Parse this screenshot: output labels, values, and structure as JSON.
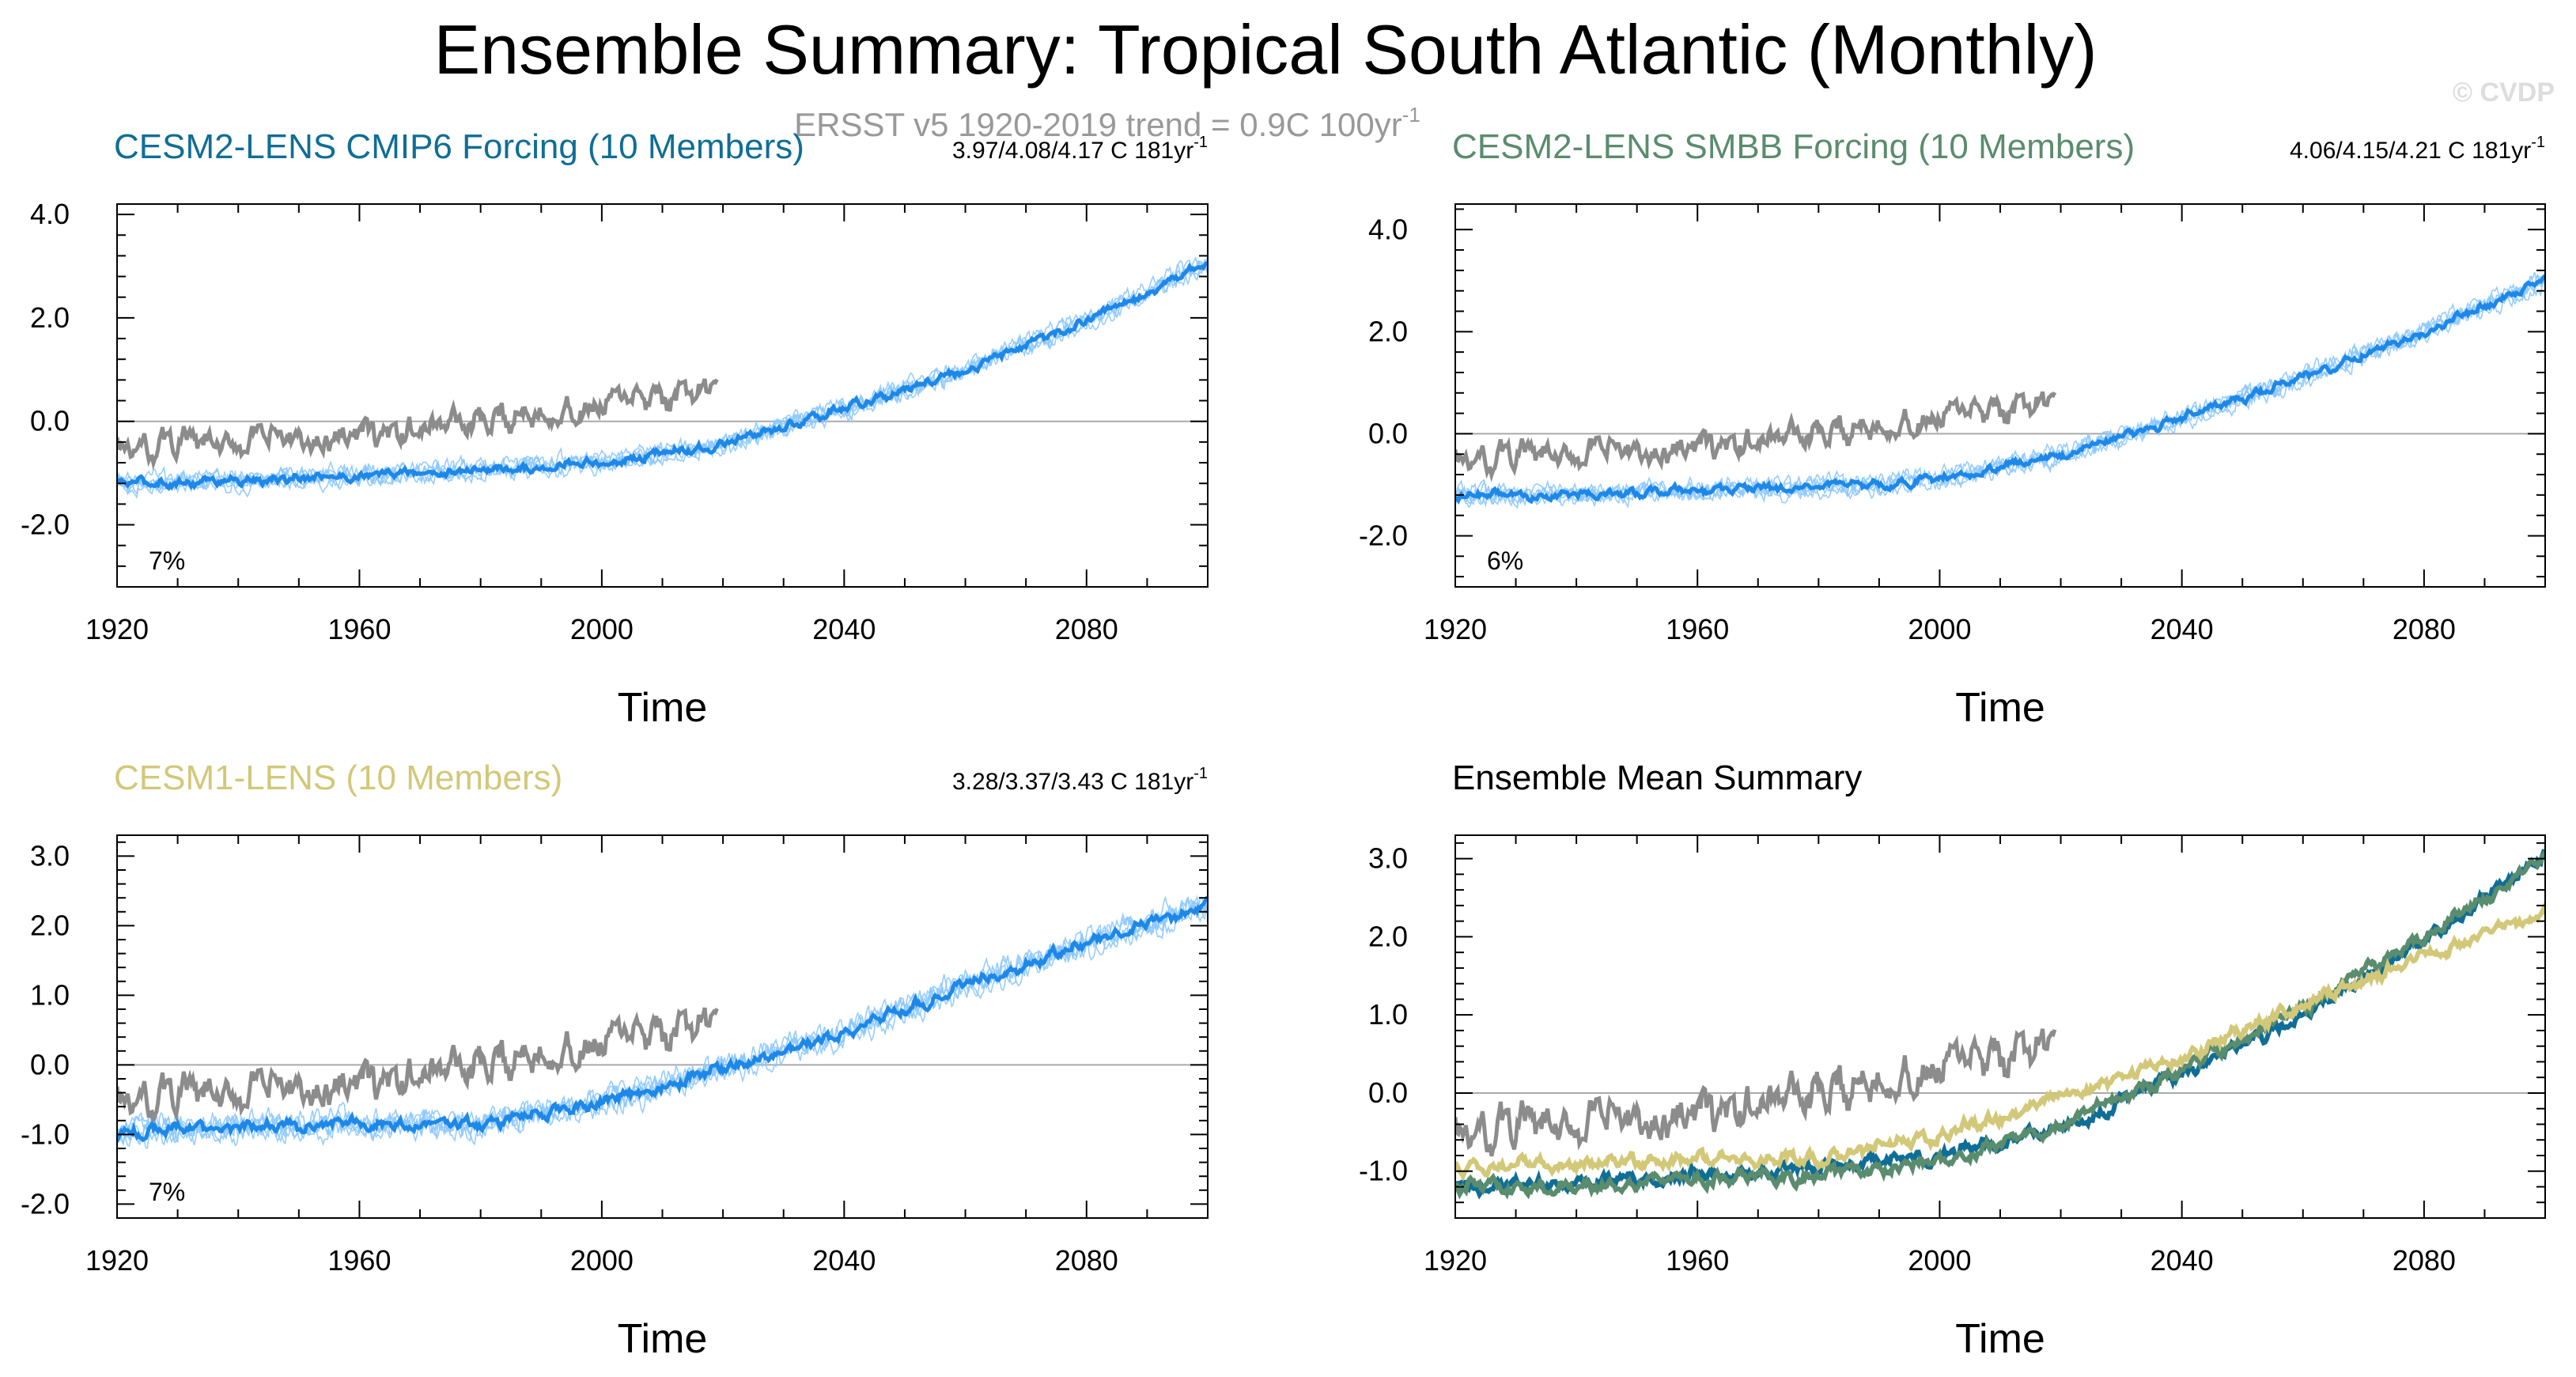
{
  "figure": {
    "title": "Ensemble Summary: Tropical South Atlantic (Monthly)",
    "subtitle": "ERSST v5 1920-2019 trend = 0.9C 100yr",
    "subtitle_sup": "-1",
    "watermark": "© CVDP"
  },
  "colors": {
    "obs": "#8c8c8c",
    "member": "#8cc8ff",
    "mean": "#1e88e8",
    "cmip6": "#0f6e96",
    "smbb": "#5a8c6e",
    "cesm1": "#d2c878",
    "zero_line": "#aaaaaa",
    "axis": "#000000"
  },
  "chart_data": [
    {
      "id": "cmip6",
      "type": "line",
      "title": "CESM2-LENS CMIP6 Forcing (10 Members)",
      "title_color": "#0f6e96",
      "trend_label": "3.97/4.08/4.17 C 181yr",
      "trend_sup": "-1",
      "pct_label": "7%",
      "xlabel": "Time",
      "ylabel": "",
      "xlim": [
        1920,
        2100
      ],
      "ylim": [
        -3.2,
        4.2
      ],
      "yticks": [
        -2.0,
        0.0,
        2.0,
        4.0
      ],
      "ytick_labels": [
        "-2.0",
        "0.0",
        "2.0",
        "4.0"
      ],
      "xticks": [
        1920,
        1960,
        2000,
        2040,
        2080
      ],
      "xtick_labels": [
        "1920",
        "1960",
        "2000",
        "2040",
        "2080"
      ],
      "series": [
        {
          "name": "ERSST v5 observations",
          "role": "obs",
          "x": [
            1920,
            1940,
            1960,
            1980,
            2000,
            2020
          ],
          "y": [
            -0.5,
            -0.4,
            -0.3,
            0.0,
            0.3,
            0.6
          ]
        },
        {
          "name": "Ensemble mean",
          "role": "mean",
          "x": [
            1920,
            1940,
            1960,
            1980,
            2000,
            2020,
            2040,
            2060,
            2080,
            2100
          ],
          "y": [
            -1.2,
            -1.15,
            -1.05,
            -0.95,
            -0.8,
            -0.45,
            0.25,
            1.0,
            1.95,
            3.05
          ]
        }
      ]
    },
    {
      "id": "smbb",
      "type": "line",
      "title": "CESM2-LENS SMBB Forcing (10 Members)",
      "title_color": "#5a8c6e",
      "trend_label": "4.06/4.15/4.21 C 181yr",
      "trend_sup": "-1",
      "pct_label": "6%",
      "xlabel": "Time",
      "ylabel": "",
      "xlim": [
        1920,
        2100
      ],
      "ylim": [
        -3.0,
        4.5
      ],
      "yticks": [
        -2.0,
        0.0,
        2.0,
        4.0
      ],
      "ytick_labels": [
        "-2.0",
        "0.0",
        "2.0",
        "4.0"
      ],
      "xticks": [
        1920,
        1960,
        2000,
        2040,
        2080
      ],
      "xtick_labels": [
        "1920",
        "1960",
        "2000",
        "2040",
        "2080"
      ],
      "series": [
        {
          "name": "ERSST v5 observations",
          "role": "obs",
          "x": [
            1920,
            1940,
            1960,
            1980,
            2000,
            2020
          ],
          "y": [
            -0.5,
            -0.4,
            -0.3,
            0.0,
            0.3,
            0.6
          ]
        },
        {
          "name": "Ensemble mean",
          "role": "mean",
          "x": [
            1920,
            1940,
            1960,
            1980,
            2000,
            2020,
            2040,
            2060,
            2080,
            2100
          ],
          "y": [
            -1.2,
            -1.2,
            -1.1,
            -1.05,
            -0.9,
            -0.4,
            0.3,
            1.1,
            2.0,
            3.0
          ]
        }
      ]
    },
    {
      "id": "cesm1",
      "type": "line",
      "title": "CESM1-LENS (10 Members)",
      "title_color": "#d2c878",
      "trend_label": "3.28/3.37/3.43 C 181yr",
      "trend_sup": "-1",
      "pct_label": "7%",
      "xlabel": "Time",
      "ylabel": "",
      "xlim": [
        1920,
        2100
      ],
      "ylim": [
        -2.2,
        3.3
      ],
      "yticks": [
        -2.0,
        -1.0,
        0.0,
        1.0,
        2.0,
        3.0
      ],
      "ytick_labels": [
        "-2.0",
        "-1.0",
        "0.0",
        "1.0",
        "2.0",
        "3.0"
      ],
      "xticks": [
        1920,
        1960,
        2000,
        2040,
        2080
      ],
      "xtick_labels": [
        "1920",
        "1960",
        "2000",
        "2040",
        "2080"
      ],
      "series": [
        {
          "name": "ERSST v5 observations",
          "role": "obs",
          "x": [
            1920,
            1940,
            1960,
            1980,
            2000,
            2020
          ],
          "y": [
            -0.5,
            -0.4,
            -0.3,
            0.0,
            0.3,
            0.6
          ]
        },
        {
          "name": "Ensemble mean",
          "role": "mean",
          "x": [
            1920,
            1940,
            1960,
            1980,
            2000,
            2020,
            2040,
            2060,
            2080,
            2100
          ],
          "y": [
            -0.95,
            -0.9,
            -0.85,
            -0.85,
            -0.55,
            -0.05,
            0.45,
            1.15,
            1.75,
            2.3
          ]
        }
      ]
    },
    {
      "id": "summary",
      "type": "line",
      "title": "Ensemble Mean Summary",
      "title_color": "#000000",
      "trend_label": "",
      "trend_sup": "",
      "pct_label": "",
      "xlabel": "Time",
      "ylabel": "",
      "xlim": [
        1920,
        2100
      ],
      "ylim": [
        -1.6,
        3.3
      ],
      "yticks": [
        -1.0,
        0.0,
        1.0,
        2.0,
        3.0
      ],
      "ytick_labels": [
        "-1.0",
        "0.0",
        "1.0",
        "2.0",
        "3.0"
      ],
      "xticks": [
        1920,
        1960,
        2000,
        2040,
        2080
      ],
      "xtick_labels": [
        "1920",
        "1960",
        "2000",
        "2040",
        "2080"
      ],
      "series": [
        {
          "name": "ERSST v5 observations",
          "role": "obs",
          "x": [
            1920,
            1940,
            1960,
            1980,
            2000,
            2020
          ],
          "y": [
            -0.5,
            -0.4,
            -0.3,
            0.0,
            0.3,
            0.6
          ]
        },
        {
          "name": "CESM2-LENS CMIP6 mean",
          "role": "cmip6",
          "x": [
            1920,
            1940,
            1960,
            1980,
            2000,
            2020,
            2040,
            2060,
            2080,
            2100
          ],
          "y": [
            -1.2,
            -1.15,
            -1.05,
            -0.95,
            -0.8,
            -0.45,
            0.25,
            1.0,
            1.95,
            3.05
          ]
        },
        {
          "name": "CESM2-LENS SMBB mean",
          "role": "smbb",
          "x": [
            1920,
            1940,
            1960,
            1980,
            2000,
            2020,
            2040,
            2060,
            2080,
            2100
          ],
          "y": [
            -1.2,
            -1.2,
            -1.1,
            -1.05,
            -0.9,
            -0.4,
            0.3,
            1.1,
            2.0,
            3.0
          ]
        },
        {
          "name": "CESM1-LENS mean",
          "role": "cesm1",
          "x": [
            1920,
            1940,
            1960,
            1980,
            2000,
            2020,
            2040,
            2060,
            2080,
            2100
          ],
          "y": [
            -0.95,
            -0.9,
            -0.85,
            -0.85,
            -0.55,
            -0.05,
            0.45,
            1.15,
            1.75,
            2.3
          ]
        }
      ]
    }
  ]
}
